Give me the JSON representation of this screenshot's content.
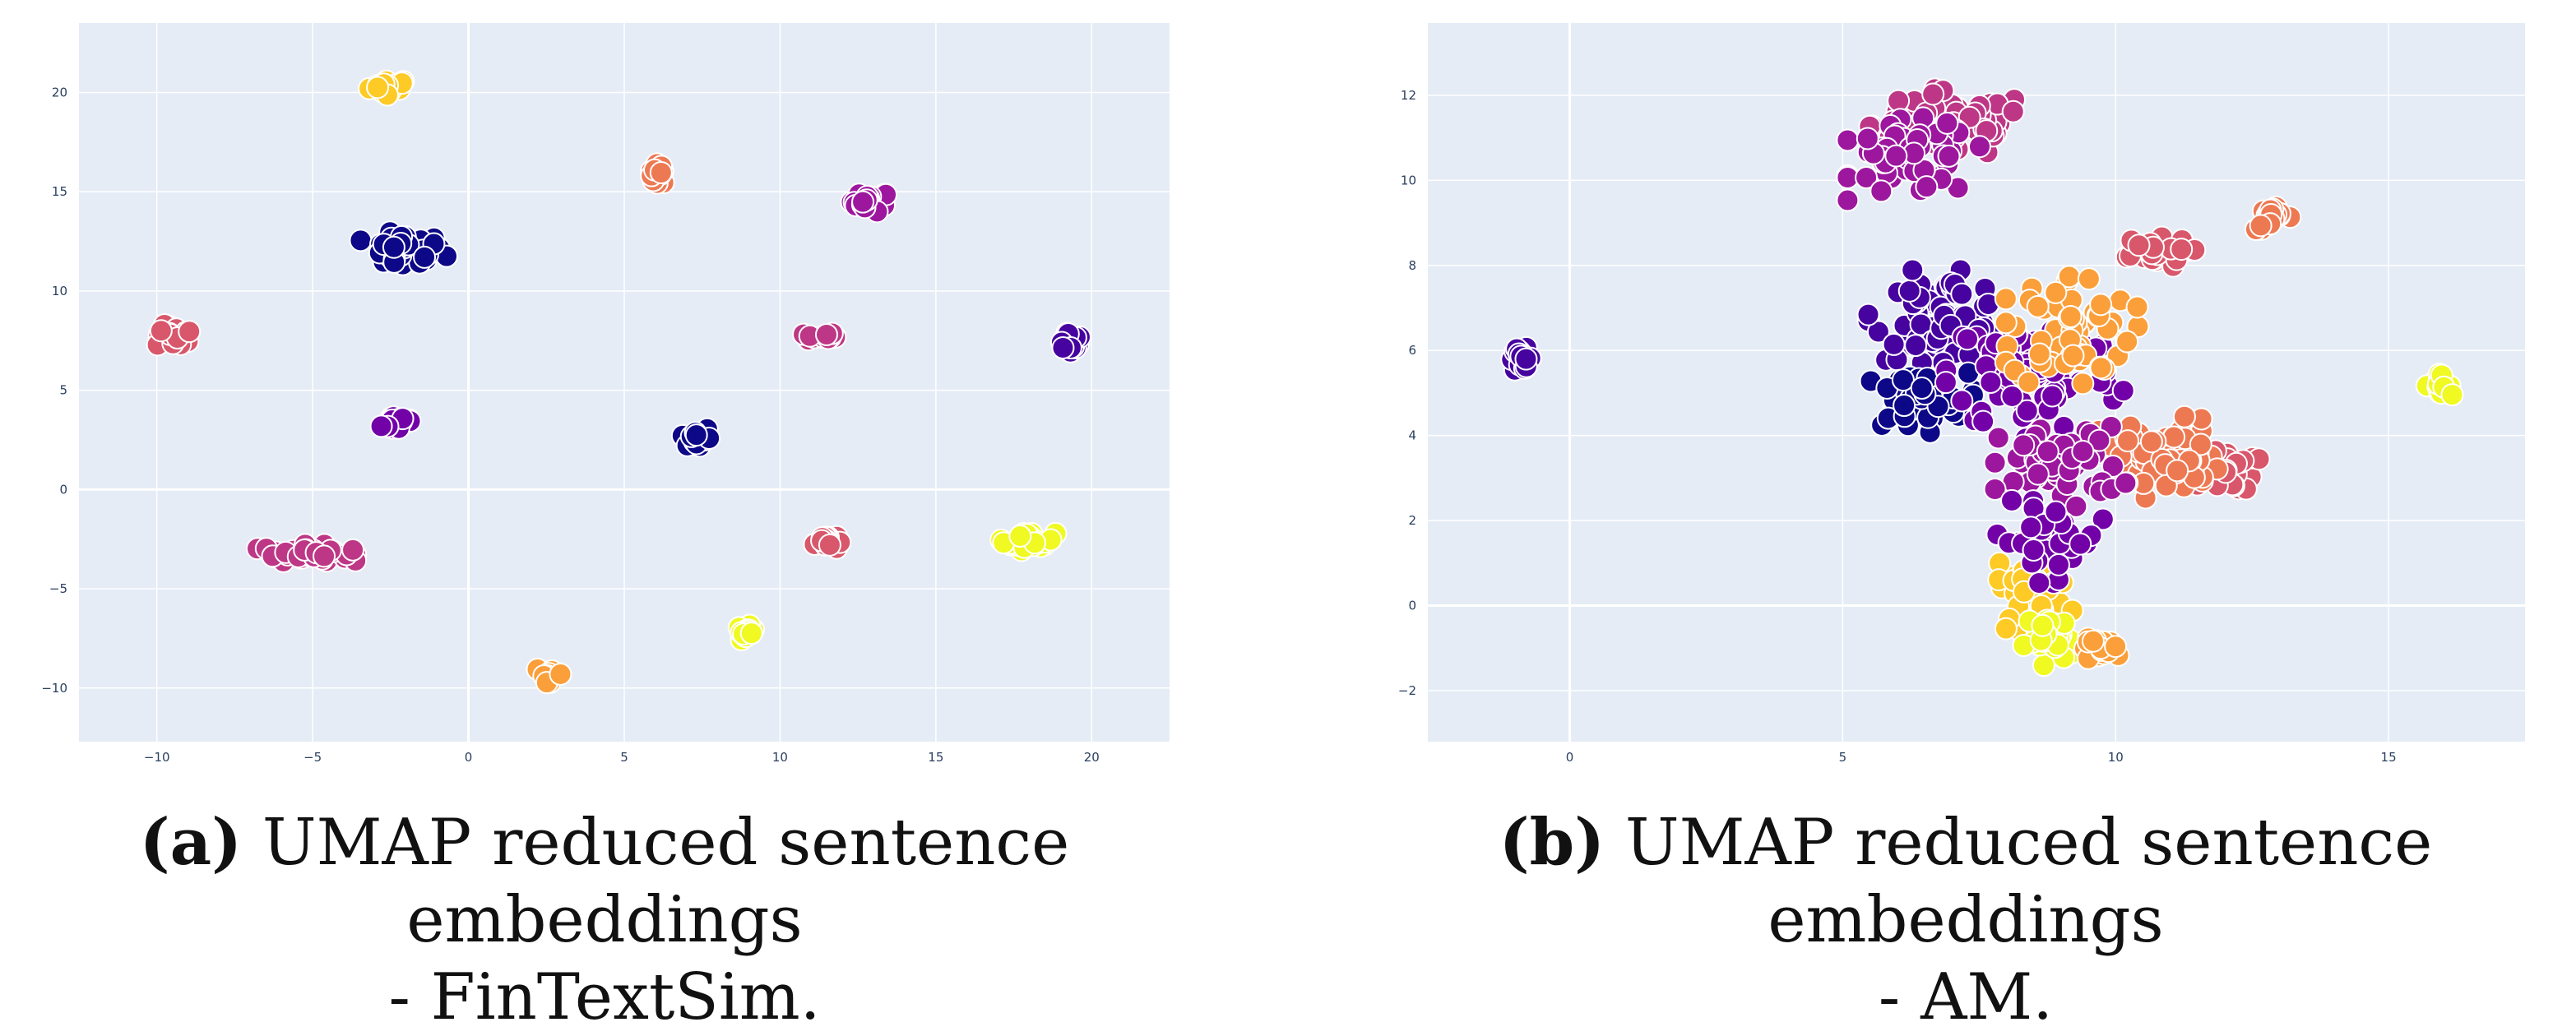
{
  "captions": [
    {
      "tag": "(a)",
      "text": "UMAP reduced sentence embeddings",
      "line2": "- FinTextSim."
    },
    {
      "tag": "(b)",
      "text": "UMAP reduced sentence embeddings",
      "line2": "- AM."
    }
  ],
  "colors": {
    "plot_bg": "#e5ecf6",
    "grid": "#ffffff",
    "palette": [
      "#0d0887",
      "#46039f",
      "#7201a8",
      "#9c179e",
      "#bd3786",
      "#d8576b",
      "#ed7953",
      "#fb9f3a",
      "#fdca26",
      "#f0f921"
    ]
  },
  "chart_data": [
    {
      "type": "scatter",
      "title": "",
      "xlabel": "",
      "ylabel": "",
      "xlim": [
        -12.5,
        22.5
      ],
      "ylim": [
        -12.7,
        23.5
      ],
      "xticks": [
        -10,
        -5,
        0,
        5,
        10,
        15,
        20
      ],
      "yticks": [
        -10,
        -5,
        0,
        5,
        10,
        15,
        20
      ],
      "grid": true,
      "legend": "none",
      "clusters": [
        {
          "color_index": 8,
          "x": -2.5,
          "y": 20.3,
          "sx": 0.6,
          "sy": 0.35
        },
        {
          "color_index": 6,
          "x": 6.1,
          "y": 15.9,
          "sx": 0.25,
          "sy": 0.45
        },
        {
          "color_index": 3,
          "x": 12.9,
          "y": 14.5,
          "sx": 0.55,
          "sy": 0.45
        },
        {
          "color_index": 0,
          "x": -2.1,
          "y": 12.0,
          "sx": 1.2,
          "sy": 0.8
        },
        {
          "color_index": 5,
          "x": -9.4,
          "y": 7.7,
          "sx": 0.55,
          "sy": 0.5
        },
        {
          "color_index": 4,
          "x": 11.3,
          "y": 7.7,
          "sx": 0.45,
          "sy": 0.2
        },
        {
          "color_index": 1,
          "x": 19.3,
          "y": 7.5,
          "sx": 0.45,
          "sy": 0.6
        },
        {
          "color_index": 2,
          "x": -2.2,
          "y": 3.4,
          "sx": 0.5,
          "sy": 0.45
        },
        {
          "color_index": 0,
          "x": 7.3,
          "y": 2.6,
          "sx": 0.45,
          "sy": 0.55
        },
        {
          "color_index": 4,
          "x": -5.2,
          "y": -3.2,
          "sx": 1.3,
          "sy": 0.35
        },
        {
          "color_index": 5,
          "x": 11.5,
          "y": -2.6,
          "sx": 0.35,
          "sy": 0.4
        },
        {
          "color_index": 9,
          "x": 18.0,
          "y": -2.6,
          "sx": 0.75,
          "sy": 0.4
        },
        {
          "color_index": 9,
          "x": 8.9,
          "y": -7.2,
          "sx": 0.25,
          "sy": 0.3
        },
        {
          "color_index": 7,
          "x": 2.6,
          "y": -9.3,
          "sx": 0.4,
          "sy": 0.35
        }
      ]
    },
    {
      "type": "scatter",
      "title": "",
      "xlabel": "",
      "ylabel": "",
      "xlim": [
        -2.6,
        17.5
      ],
      "ylim": [
        -3.2,
        13.7
      ],
      "xticks": [
        0,
        5,
        10,
        15
      ],
      "yticks": [
        -2,
        0,
        2,
        4,
        6,
        8,
        10,
        12
      ],
      "grid": true,
      "legend": "none",
      "clusters": [
        {
          "color_index": 1,
          "x": -0.9,
          "y": 5.8,
          "sx": 0.2,
          "sy": 0.22
        },
        {
          "color_index": 9,
          "x": 15.9,
          "y": 5.2,
          "sx": 0.22,
          "sy": 0.2
        },
        {
          "color_index": 6,
          "x": 12.9,
          "y": 9.1,
          "sx": 0.3,
          "sy": 0.25
        },
        {
          "color_index": 4,
          "x": 7.0,
          "y": 11.3,
          "sx": 1.3,
          "sy": 0.7
        },
        {
          "color_index": 3,
          "x": 6.3,
          "y": 10.5,
          "sx": 1.0,
          "sy": 0.8
        },
        {
          "color_index": 1,
          "x": 6.8,
          "y": 6.8,
          "sx": 1.1,
          "sy": 0.9
        },
        {
          "color_index": 0,
          "x": 6.3,
          "y": 4.8,
          "sx": 0.9,
          "sy": 0.6
        },
        {
          "color_index": 2,
          "x": 8.5,
          "y": 5.5,
          "sx": 1.4,
          "sy": 1.3
        },
        {
          "color_index": 7,
          "x": 9.2,
          "y": 6.5,
          "sx": 1.0,
          "sy": 1.2
        },
        {
          "color_index": 5,
          "x": 10.6,
          "y": 8.3,
          "sx": 0.7,
          "sy": 0.3
        },
        {
          "color_index": 5,
          "x": 11.9,
          "y": 3.2,
          "sx": 0.6,
          "sy": 0.45
        },
        {
          "color_index": 6,
          "x": 10.8,
          "y": 3.5,
          "sx": 1.0,
          "sy": 0.8
        },
        {
          "color_index": 3,
          "x": 9.0,
          "y": 3.3,
          "sx": 1.0,
          "sy": 0.8
        },
        {
          "color_index": 8,
          "x": 8.5,
          "y": 0.4,
          "sx": 0.6,
          "sy": 0.9
        },
        {
          "color_index": 2,
          "x": 8.8,
          "y": 1.5,
          "sx": 0.8,
          "sy": 0.8
        },
        {
          "color_index": 9,
          "x": 8.8,
          "y": -0.8,
          "sx": 0.4,
          "sy": 0.5
        },
        {
          "color_index": 7,
          "x": 9.8,
          "y": -1.0,
          "sx": 0.4,
          "sy": 0.2
        }
      ]
    }
  ]
}
